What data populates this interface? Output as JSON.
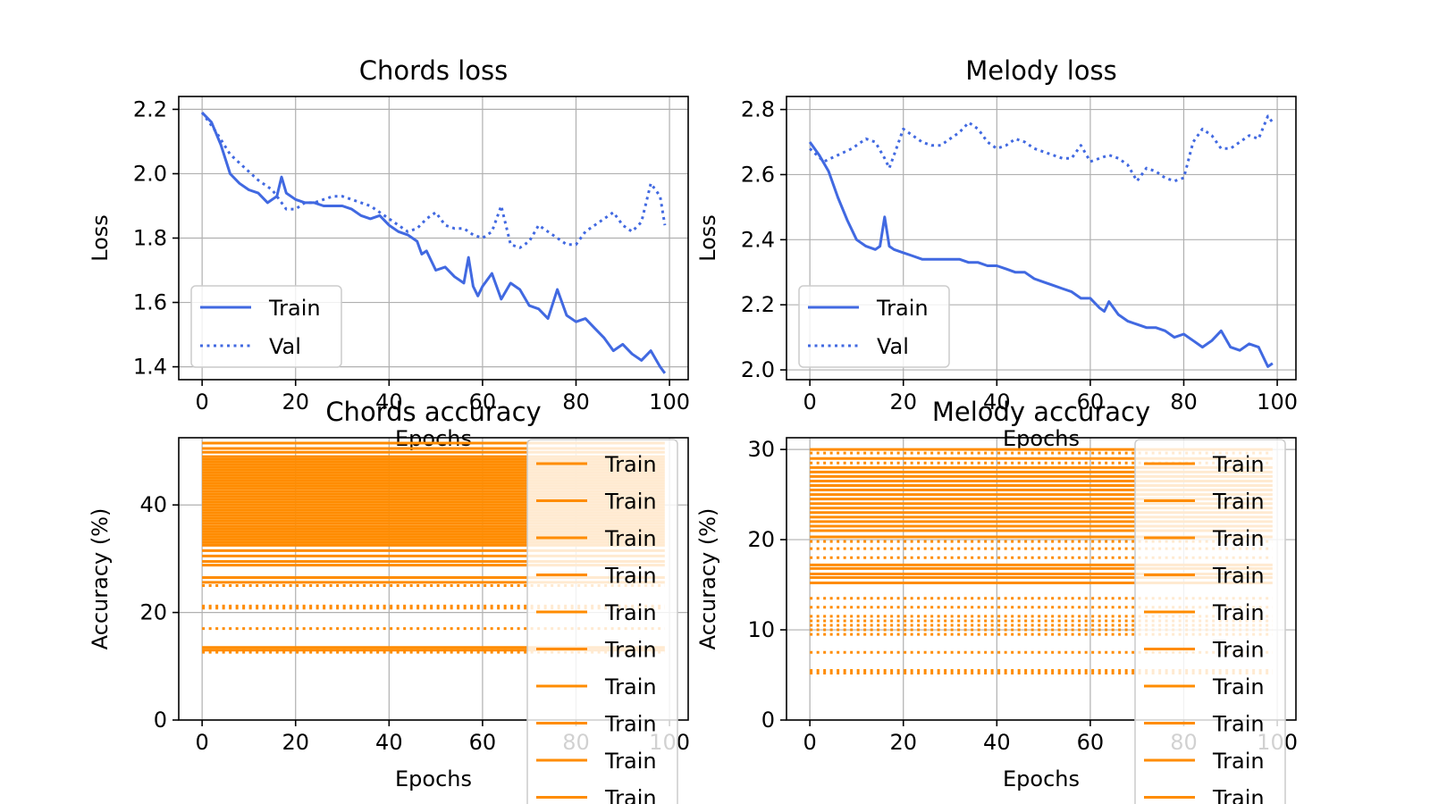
{
  "chart_data": [
    {
      "type": "line",
      "title": "Chords loss",
      "xlabel": "Epochs",
      "ylabel": "Loss",
      "xlim": [
        -5,
        104
      ],
      "ylim": [
        1.36,
        2.24
      ],
      "xticks": [
        0,
        20,
        40,
        60,
        80,
        100
      ],
      "yticks": [
        1.4,
        1.6,
        1.8,
        2.0,
        2.2
      ],
      "ytick_decimals": 1,
      "grid": true,
      "legend_position": "lower-left",
      "color": "#4169e1",
      "series": [
        {
          "name": "Train",
          "style": "solid",
          "x": [
            0,
            2,
            4,
            6,
            8,
            10,
            12,
            14,
            16,
            17,
            18,
            20,
            22,
            24,
            26,
            28,
            30,
            32,
            34,
            36,
            38,
            40,
            42,
            44,
            46,
            47,
            48,
            50,
            52,
            54,
            56,
            57,
            58,
            59,
            60,
            62,
            64,
            66,
            68,
            70,
            72,
            74,
            76,
            78,
            80,
            82,
            84,
            86,
            88,
            90,
            92,
            94,
            96,
            98,
            99
          ],
          "y": [
            2.19,
            2.16,
            2.09,
            2.0,
            1.97,
            1.95,
            1.94,
            1.91,
            1.93,
            1.99,
            1.94,
            1.92,
            1.91,
            1.91,
            1.9,
            1.9,
            1.9,
            1.89,
            1.87,
            1.86,
            1.87,
            1.84,
            1.82,
            1.81,
            1.79,
            1.75,
            1.76,
            1.7,
            1.71,
            1.68,
            1.66,
            1.74,
            1.65,
            1.62,
            1.65,
            1.69,
            1.61,
            1.66,
            1.64,
            1.59,
            1.58,
            1.55,
            1.64,
            1.56,
            1.54,
            1.55,
            1.52,
            1.49,
            1.45,
            1.47,
            1.44,
            1.42,
            1.45,
            1.4,
            1.38
          ]
        },
        {
          "name": "Val",
          "style": "dotted",
          "x": [
            0,
            3,
            6,
            9,
            12,
            15,
            17,
            18,
            20,
            22,
            24,
            26,
            28,
            30,
            32,
            34,
            36,
            38,
            40,
            42,
            44,
            46,
            48,
            50,
            52,
            54,
            56,
            58,
            60,
            62,
            64,
            66,
            68,
            70,
            72,
            74,
            76,
            78,
            80,
            82,
            84,
            86,
            88,
            90,
            92,
            94,
            96,
            98,
            99
          ],
          "y": [
            2.19,
            2.13,
            2.06,
            2.02,
            1.98,
            1.95,
            1.91,
            1.89,
            1.89,
            1.91,
            1.91,
            1.92,
            1.93,
            1.93,
            1.92,
            1.91,
            1.9,
            1.88,
            1.86,
            1.84,
            1.82,
            1.83,
            1.86,
            1.88,
            1.84,
            1.83,
            1.83,
            1.81,
            1.8,
            1.82,
            1.9,
            1.78,
            1.77,
            1.79,
            1.84,
            1.82,
            1.8,
            1.78,
            1.78,
            1.82,
            1.84,
            1.86,
            1.88,
            1.84,
            1.82,
            1.85,
            1.97,
            1.93,
            1.84
          ]
        }
      ]
    },
    {
      "type": "line",
      "title": "Melody loss",
      "xlabel": "Epochs",
      "ylabel": "Loss",
      "xlim": [
        -5,
        104
      ],
      "ylim": [
        1.97,
        2.84
      ],
      "xticks": [
        0,
        20,
        40,
        60,
        80,
        100
      ],
      "yticks": [
        2.0,
        2.2,
        2.4,
        2.6,
        2.8
      ],
      "ytick_decimals": 1,
      "grid": true,
      "legend_position": "lower-left",
      "color": "#4169e1",
      "series": [
        {
          "name": "Train",
          "style": "solid",
          "x": [
            0,
            2,
            4,
            6,
            8,
            10,
            12,
            14,
            15,
            16,
            17,
            18,
            20,
            22,
            24,
            26,
            28,
            30,
            32,
            34,
            36,
            38,
            40,
            42,
            44,
            46,
            48,
            50,
            52,
            54,
            56,
            58,
            60,
            62,
            63,
            64,
            66,
            68,
            70,
            72,
            74,
            76,
            78,
            80,
            82,
            84,
            86,
            88,
            90,
            92,
            94,
            96,
            98,
            99
          ],
          "y": [
            2.7,
            2.66,
            2.61,
            2.53,
            2.46,
            2.4,
            2.38,
            2.37,
            2.38,
            2.47,
            2.38,
            2.37,
            2.36,
            2.35,
            2.34,
            2.34,
            2.34,
            2.34,
            2.34,
            2.33,
            2.33,
            2.32,
            2.32,
            2.31,
            2.3,
            2.3,
            2.28,
            2.27,
            2.26,
            2.25,
            2.24,
            2.22,
            2.22,
            2.19,
            2.18,
            2.21,
            2.17,
            2.15,
            2.14,
            2.13,
            2.13,
            2.12,
            2.1,
            2.11,
            2.09,
            2.07,
            2.09,
            2.12,
            2.07,
            2.06,
            2.08,
            2.07,
            2.01,
            2.02
          ]
        },
        {
          "name": "Val",
          "style": "dotted",
          "x": [
            0,
            3,
            6,
            9,
            12,
            14,
            16,
            17,
            18,
            20,
            22,
            24,
            26,
            28,
            30,
            32,
            34,
            36,
            38,
            40,
            42,
            44,
            46,
            48,
            50,
            52,
            54,
            56,
            58,
            60,
            62,
            64,
            66,
            68,
            70,
            72,
            74,
            76,
            78,
            80,
            82,
            84,
            86,
            88,
            90,
            92,
            94,
            96,
            98,
            99
          ],
          "y": [
            2.68,
            2.64,
            2.66,
            2.68,
            2.71,
            2.7,
            2.65,
            2.62,
            2.66,
            2.74,
            2.72,
            2.7,
            2.69,
            2.69,
            2.71,
            2.73,
            2.76,
            2.74,
            2.7,
            2.68,
            2.69,
            2.71,
            2.7,
            2.68,
            2.67,
            2.66,
            2.65,
            2.65,
            2.69,
            2.64,
            2.65,
            2.66,
            2.65,
            2.63,
            2.58,
            2.62,
            2.61,
            2.59,
            2.58,
            2.59,
            2.7,
            2.74,
            2.72,
            2.68,
            2.68,
            2.7,
            2.72,
            2.71,
            2.78,
            2.76
          ]
        }
      ]
    },
    {
      "type": "line",
      "title": "Chords accuracy",
      "xlabel": "Epochs",
      "ylabel": "Accuracy (%)",
      "xlim": [
        -5,
        104
      ],
      "ylim": [
        0,
        52.5
      ],
      "xticks": [
        0,
        20,
        40,
        60,
        80,
        100
      ],
      "yticks": [
        0,
        20,
        40
      ],
      "ytick_decimals": 0,
      "grid": true,
      "legend_position": "right (overflowing below plot)",
      "color": "#ff8c00",
      "x_range": [
        0,
        99
      ],
      "solid_levels": [
        51.5,
        50.5,
        49.8,
        49.0,
        48.5,
        48.0,
        47.5,
        47.0,
        46.5,
        46.0,
        45.5,
        45.0,
        44.5,
        44.0,
        43.5,
        43.0,
        42.5,
        42.0,
        41.5,
        41.0,
        40.5,
        40.0,
        39.5,
        39.0,
        38.5,
        38.0,
        37.5,
        37.0,
        36.5,
        36.0,
        35.5,
        35.0,
        34.5,
        34.0,
        33.5,
        33.0,
        32.5,
        31.5,
        30.5,
        29.5,
        28.8,
        26.5,
        25.6,
        13.5,
        13.0
      ],
      "dotted_levels": [
        25.0,
        21.2,
        20.8,
        17.0,
        12.6
      ],
      "legend_entries": [
        "Train",
        "Train",
        "Train",
        "Train",
        "Train",
        "Train",
        "Train",
        "Train",
        "Train",
        "Train"
      ]
    },
    {
      "type": "line",
      "title": "Melody accuracy",
      "xlabel": "Epochs",
      "ylabel": "Accuracy (%)",
      "xlim": [
        -5,
        104
      ],
      "ylim": [
        0,
        31.3
      ],
      "xticks": [
        0,
        20,
        40,
        60,
        80,
        100
      ],
      "yticks": [
        0,
        10,
        20,
        30
      ],
      "ytick_decimals": 0,
      "grid": true,
      "legend_position": "right (overflowing below plot)",
      "color": "#ff8c00",
      "x_range": [
        0,
        99
      ],
      "solid_levels": [
        30.0,
        29.0,
        28.0,
        27.5,
        27.0,
        26.5,
        26.0,
        25.5,
        25.0,
        24.5,
        24.0,
        23.5,
        23.0,
        22.5,
        22.0,
        21.5,
        21.0,
        20.3,
        17.2,
        16.8,
        16.2,
        15.8,
        15.2
      ],
      "dotted_levels": [
        29.6,
        28.5,
        19.8,
        19.0,
        18.0,
        13.5,
        12.5,
        11.5,
        11.0,
        10.5,
        10.0,
        9.5,
        7.5,
        5.5,
        5.2
      ],
      "legend_entries": [
        "Train",
        "Train",
        "Train",
        "Train",
        "Train",
        "Train",
        "Train",
        "Train",
        "Train",
        "Train"
      ]
    }
  ]
}
